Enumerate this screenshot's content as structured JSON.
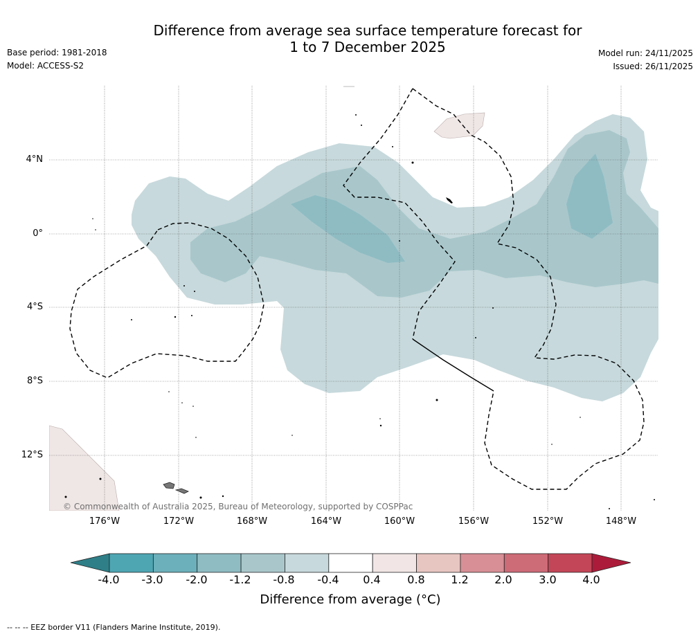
{
  "header": {
    "title_line1": "Difference from average sea surface temperature forecast for",
    "title_line2": "1 to 7 December 2025",
    "base_period": "Base period: 1981-2018",
    "model": "Model: ACCESS-S2",
    "model_run": "Model run: 24/11/2025",
    "issued": "Issued: 26/11/2025"
  },
  "map": {
    "lat_labels": [
      "4°N",
      "0°",
      "4°S",
      "8°S",
      "12°S"
    ],
    "lon_labels": [
      "176°W",
      "172°W",
      "168°W",
      "164°W",
      "160°W",
      "156°W",
      "152°W",
      "148°W"
    ],
    "copyright": "© Commonwealth of Australia 2025, Bureau of Meteorology, supported by COSPPac"
  },
  "colorbar": {
    "tick_labels": [
      "-4.0",
      "-3.0",
      "-2.0",
      "-1.2",
      "-0.8",
      "-0.4",
      "0.4",
      "0.8",
      "1.2",
      "2.0",
      "3.0",
      "4.0"
    ],
    "colors": [
      "#4ea6b3",
      "#6bb0bb",
      "#8fbcc3",
      "#a9c7cb",
      "#c7d9dc",
      "#ffffff",
      "#f1e6e5",
      "#e7c5c1",
      "#d88f96",
      "#cd6b77",
      "#c24657"
    ],
    "under_color": "#2f7f88",
    "over_color": "#ac1c3a",
    "title": "Difference from average (°C)"
  },
  "footnote": "--  --  -- EEZ border V11 (Flanders Marine Institute, 2019)."
}
